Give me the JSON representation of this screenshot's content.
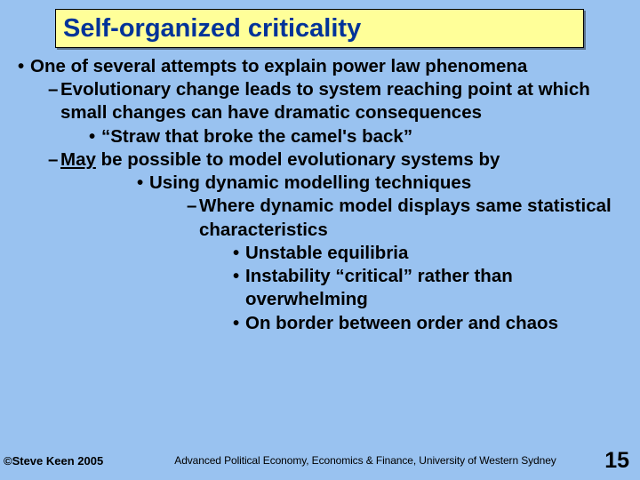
{
  "title": "Self-organized criticality",
  "bullets": {
    "b1": "One of several attempts to explain power law phenomena",
    "b2": "Evolutionary change leads to system reaching point at which small changes can have dramatic consequences",
    "b3": "“Straw that broke the camel's back”",
    "b4_may": "May",
    "b4_rest": " be possible to model evolutionary systems by",
    "b5": "Using dynamic modelling techniques",
    "b6": "Where dynamic model displays same statistical characteristics",
    "b7": "Unstable equilibria",
    "b8": "Instability “critical” rather than overwhelming",
    "b9": "On border between order and chaos"
  },
  "footer": {
    "copyright": "©Steve Keen 2005",
    "course": "Advanced Political Economy, Economics & Finance, University of Western Sydney",
    "page": "15"
  },
  "colors": {
    "background": "#99c2f0",
    "title_bg": "#ffff99",
    "title_text": "#003399",
    "body_text": "#000000"
  },
  "typography": {
    "title_fontsize": 29,
    "body_fontsize": 20.5,
    "footer_small_fontsize": 13,
    "page_fontsize": 25,
    "font_family": "Comic Sans MS"
  }
}
